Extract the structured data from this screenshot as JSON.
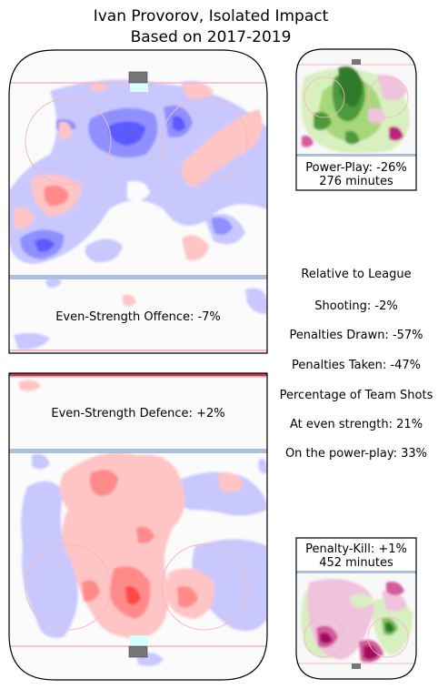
{
  "title": {
    "line1": "Ivan Provorov, Isolated Impact",
    "line2": "Based on 2017-2019"
  },
  "colors": {
    "rink_line": "#000000",
    "blue_line": "#aabfdf",
    "goal_line": "#f4b8c0",
    "net": "#777777",
    "crease": "#d8ffff",
    "increase_red": "#ff8a8a",
    "decrease_blue": "#6a6aff",
    "pp_green": "#2e7a2a",
    "pk_magenta": "#c0237a"
  },
  "chart_data": [
    {
      "type": "heatmap",
      "panel": "even-strength-offence",
      "label": "Even-Strength Offence: -7%",
      "value_pct": -7,
      "colormap": "blue (below league) / red (above league)"
    },
    {
      "type": "heatmap",
      "panel": "even-strength-defence",
      "label": "Even-Strength Defence: +2%",
      "value_pct": 2,
      "colormap": "blue (below league) / red (above league)"
    },
    {
      "type": "heatmap",
      "panel": "power-play",
      "label_line1": "Power-Play: -26%",
      "label_line2": "276 minutes",
      "value_pct": -26,
      "minutes": 276,
      "colormap": "green / magenta"
    },
    {
      "type": "heatmap",
      "panel": "penalty-kill",
      "label_line1": "Penalty-Kill: +1%",
      "label_line2": "452 minutes",
      "value_pct": 1,
      "minutes": 452,
      "colormap": "green / magenta"
    }
  ],
  "stats": {
    "heading": "Relative to League",
    "shooting": "Shooting: -2%",
    "penalties_drawn": "Penalties Drawn: -57%",
    "penalties_taken": "Penalties Taken: -47%",
    "team_shots_heading": "Percentage of Team Shots",
    "even_strength": "At even strength: 21%",
    "power_play": "On the power-play: 33%"
  }
}
